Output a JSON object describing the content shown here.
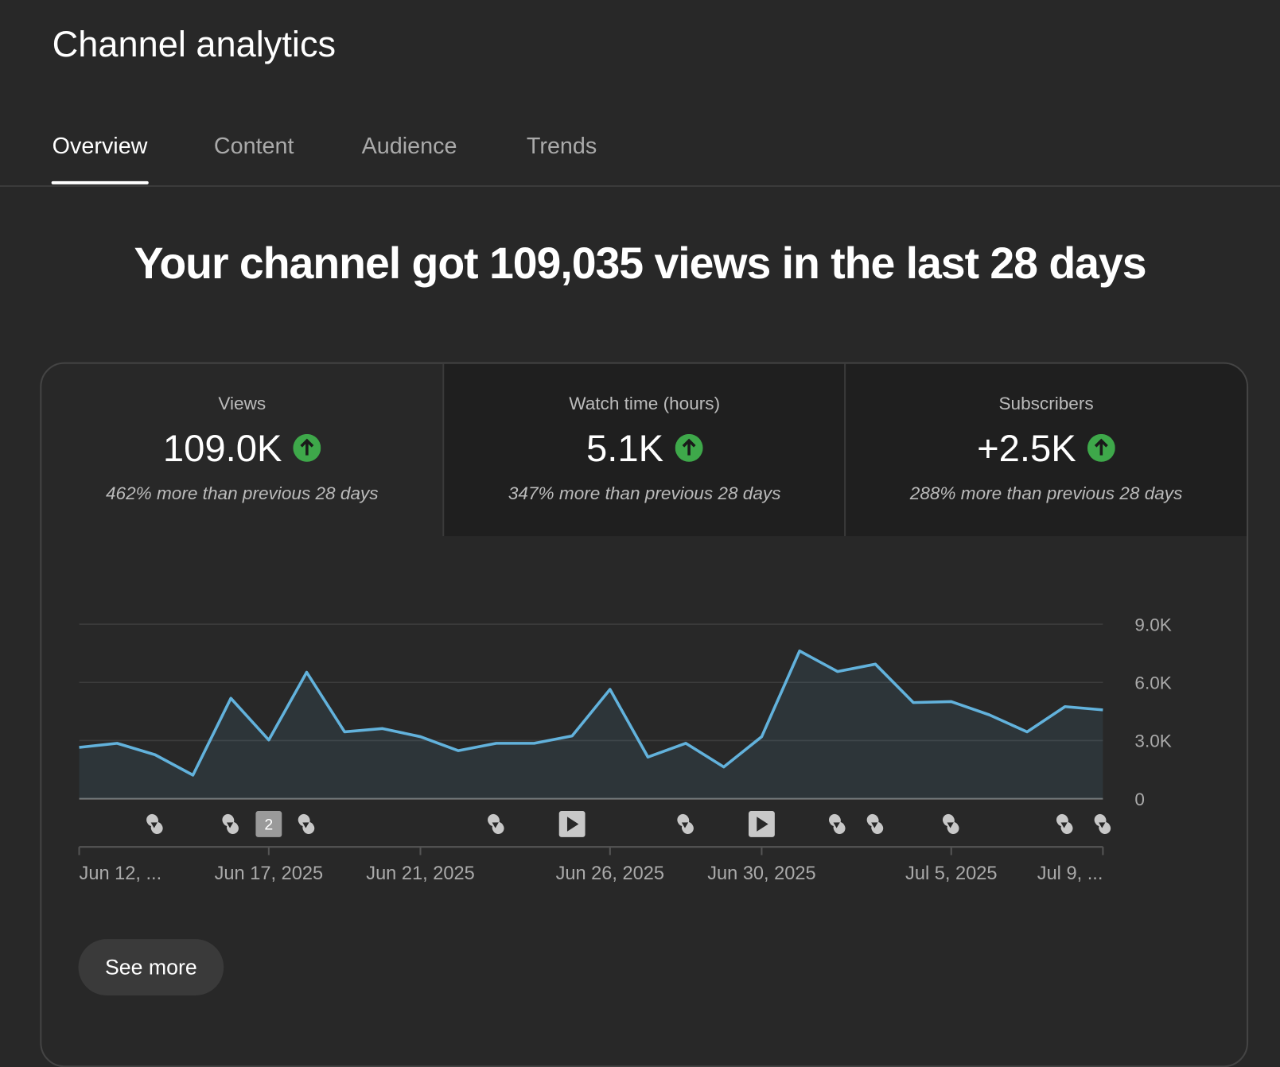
{
  "header": {
    "title": "Channel analytics"
  },
  "tabs": [
    "Overview",
    "Content",
    "Audience",
    "Trends"
  ],
  "headline": "Your channel got 109,035 views in the last 28 days",
  "metrics": [
    {
      "label": "Views",
      "value": "109.0K",
      "change": "462% more than previous 28 days"
    },
    {
      "label": "Watch time (hours)",
      "value": "5.1K",
      "change": "347% more than previous 28 days"
    },
    {
      "label": "Subscribers",
      "value": "+2.5K",
      "change": "288% more than previous 28 days"
    }
  ],
  "chart_data": {
    "type": "line",
    "categories": [
      "Jun 12, ...",
      null,
      null,
      null,
      null,
      "Jun 17, 2025",
      null,
      null,
      null,
      "Jun 21, 2025",
      null,
      null,
      null,
      null,
      "Jun 26, 2025",
      null,
      null,
      null,
      "Jun 30, 2025",
      null,
      null,
      null,
      null,
      "Jul 5, 2025",
      null,
      null,
      null,
      "Jul 9, ..."
    ],
    "values": [
      2650,
      2860,
      2270,
      1220,
      5180,
      3030,
      6520,
      3450,
      3620,
      3200,
      2480,
      2860,
      2860,
      3240,
      5640,
      2150,
      2860,
      1640,
      3200,
      7620,
      6560,
      6940,
      4960,
      5010,
      4330,
      3450,
      4750,
      4580
    ],
    "color": "#62b2dc",
    "ylim": [
      0,
      9000
    ],
    "yticks": [
      0,
      {
        "value": 3000,
        "label": "3.0K"
      },
      {
        "value": 6000,
        "label": "6.0K"
      },
      {
        "value": 9000,
        "label": "9.0K"
      }
    ],
    "grid": true,
    "annotations": [
      "2"
    ]
  },
  "button": "See more"
}
